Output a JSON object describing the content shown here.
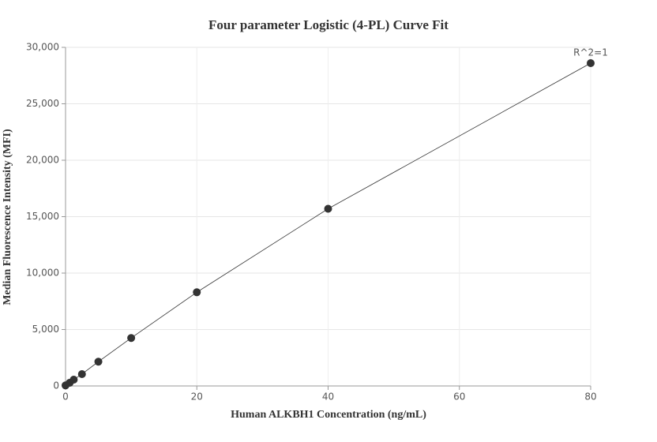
{
  "chart_data": {
    "type": "scatter",
    "title": "Four parameter Logistic (4-PL) Curve Fit",
    "x_label": "Human ALKBH1 Concentration (ng/mL)",
    "y_label": "Median Fluorescence Intensity (MFI)",
    "annotation": "R^2=1",
    "x": [
      0,
      0.625,
      1.25,
      2.5,
      5,
      10,
      20,
      40,
      80
    ],
    "series": [
      {
        "color": "#333333",
        "values": [
          50,
          280,
          560,
          1050,
          2150,
          4250,
          8300,
          15700,
          28600
        ]
      }
    ],
    "xlim": [
      0,
      80
    ],
    "xticks": [
      0,
      20,
      40,
      60,
      80
    ],
    "ylim": [
      0,
      30000
    ],
    "yticks": [
      0,
      {
        "value": 5000,
        "label": "5,000"
      },
      {
        "value": 10000,
        "label": "10,000"
      },
      {
        "value": 15000,
        "label": "15,000"
      },
      {
        "value": 20000,
        "label": "20,000"
      },
      {
        "value": 25000,
        "label": "25,000"
      },
      {
        "value": 30000,
        "label": "30,000"
      }
    ],
    "grid": true
  }
}
